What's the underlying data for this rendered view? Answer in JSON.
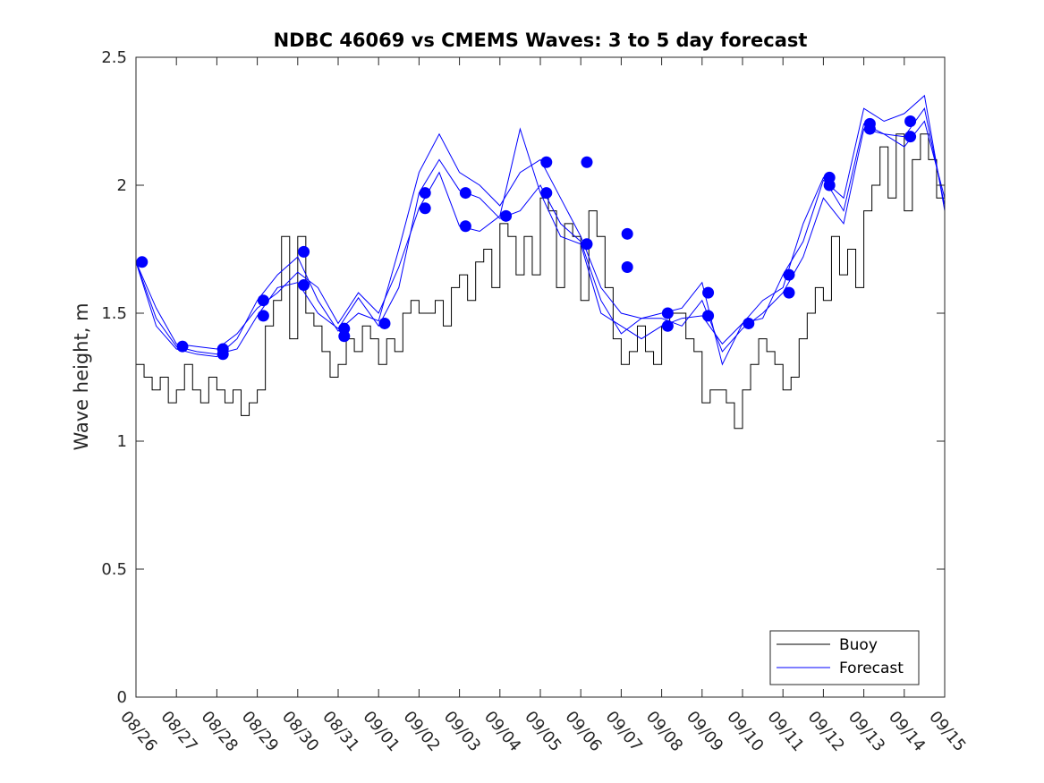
{
  "chart_data": {
    "type": "line",
    "title": "NDBC 46069 vs CMEMS Waves: 3 to 5 day forecast",
    "xlabel": "",
    "ylabel": "Wave height, m",
    "xlim_days": [
      0,
      20
    ],
    "ylim": [
      0,
      2.5
    ],
    "yticks": [
      0,
      0.5,
      1,
      1.5,
      2,
      2.5
    ],
    "ytick_labels": [
      "0",
      "0.5",
      "1",
      "1.5",
      "2",
      "2.5"
    ],
    "xtick_labels": [
      "08/26",
      "08/27",
      "08/28",
      "08/29",
      "08/30",
      "08/31",
      "09/01",
      "09/02",
      "09/03",
      "09/04",
      "09/05",
      "09/06",
      "09/07",
      "09/08",
      "09/09",
      "09/10",
      "09/11",
      "09/12",
      "09/13",
      "09/14",
      "09/15"
    ],
    "legend": {
      "placement": "bottom-right",
      "entries": [
        "Buoy",
        "Forecast"
      ]
    },
    "colors": {
      "buoy": "#000000",
      "forecast": "#0000ff",
      "axis": "#262626"
    },
    "series": [
      {
        "name": "Buoy",
        "x_days": [
          0,
          0.2,
          0.4,
          0.6,
          0.8,
          1.0,
          1.2,
          1.4,
          1.6,
          1.8,
          2.0,
          2.2,
          2.4,
          2.6,
          2.8,
          3.0,
          3.2,
          3.4,
          3.6,
          3.8,
          4.0,
          4.2,
          4.4,
          4.6,
          4.8,
          5.0,
          5.2,
          5.4,
          5.6,
          5.8,
          6.0,
          6.2,
          6.4,
          6.6,
          6.8,
          7.0,
          7.2,
          7.4,
          7.6,
          7.8,
          8.0,
          8.2,
          8.4,
          8.6,
          8.8,
          9.0,
          9.2,
          9.4,
          9.6,
          9.8,
          10.0,
          10.2,
          10.4,
          10.6,
          10.8,
          11.0,
          11.2,
          11.4,
          11.6,
          11.8,
          12.0,
          12.2,
          12.4,
          12.6,
          12.8,
          13.0,
          13.2,
          13.4,
          13.6,
          13.8,
          14.0,
          14.2,
          14.4,
          14.6,
          14.8,
          15.0,
          15.2,
          15.4,
          15.6,
          15.8,
          16.0,
          16.2,
          16.4,
          16.6,
          16.8,
          17.0,
          17.2,
          17.4,
          17.6,
          17.8,
          18.0,
          18.2,
          18.4,
          18.6,
          18.8,
          19.0,
          19.2,
          19.4,
          19.6,
          19.8,
          20.0
        ],
        "values": [
          1.3,
          1.25,
          1.2,
          1.25,
          1.15,
          1.2,
          1.3,
          1.2,
          1.15,
          1.25,
          1.2,
          1.15,
          1.2,
          1.1,
          1.15,
          1.2,
          1.45,
          1.55,
          1.8,
          1.4,
          1.8,
          1.5,
          1.45,
          1.35,
          1.25,
          1.3,
          1.4,
          1.35,
          1.45,
          1.4,
          1.3,
          1.4,
          1.35,
          1.5,
          1.55,
          1.5,
          1.5,
          1.55,
          1.45,
          1.6,
          1.65,
          1.55,
          1.7,
          1.75,
          1.6,
          1.85,
          1.8,
          1.65,
          1.8,
          1.65,
          1.95,
          1.9,
          1.6,
          1.85,
          1.8,
          1.55,
          1.9,
          1.8,
          1.6,
          1.4,
          1.3,
          1.35,
          1.45,
          1.35,
          1.3,
          1.45,
          1.5,
          1.5,
          1.4,
          1.35,
          1.15,
          1.2,
          1.2,
          1.15,
          1.05,
          1.2,
          1.3,
          1.4,
          1.35,
          1.3,
          1.2,
          1.25,
          1.4,
          1.5,
          1.6,
          1.55,
          1.8,
          1.65,
          1.75,
          1.6,
          1.9,
          2.0,
          2.15,
          1.95,
          2.2,
          1.9,
          2.1,
          2.2,
          2.1,
          1.95,
          2.0
        ]
      },
      {
        "name": "Forecast",
        "tracks": [
          {
            "x_days": [
              0,
              0.5,
              1,
              1.5,
              2,
              2.5,
              3,
              3.5,
              4,
              4.5,
              5,
              5.5,
              6,
              6.5,
              7,
              7.5,
              8,
              8.5,
              9,
              9.5,
              10,
              10.5,
              11,
              11.5,
              12,
              12.5,
              13,
              13.5,
              14,
              14.5,
              15,
              15.5,
              16,
              16.5,
              17,
              17.5,
              18,
              18.5,
              19,
              19.5,
              20
            ],
            "values": [
              1.7,
              1.48,
              1.37,
              1.35,
              1.34,
              1.36,
              1.49,
              1.6,
              1.62,
              1.5,
              1.44,
              1.56,
              1.45,
              1.6,
              1.97,
              2.1,
              1.98,
              1.95,
              1.87,
              1.9,
              2.0,
              1.85,
              1.78,
              1.55,
              1.42,
              1.48,
              1.48,
              1.45,
              1.55,
              1.35,
              1.44,
              1.5,
              1.58,
              1.72,
              1.95,
              1.85,
              2.22,
              2.2,
              2.15,
              2.25,
              1.95
            ]
          },
          {
            "x_days": [
              0,
              0.5,
              1,
              1.5,
              2,
              2.5,
              3,
              3.5,
              4,
              4.5,
              5,
              5.5,
              6,
              6.5,
              7,
              7.5,
              8,
              8.5,
              9,
              9.5,
              10,
              10.5,
              11,
              11.5,
              12,
              12.5,
              13,
              13.5,
              14,
              14.5,
              15,
              15.5,
              16,
              16.5,
              17,
              17.5,
              18,
              18.5,
              19,
              19.5,
              20
            ],
            "values": [
              1.7,
              1.45,
              1.36,
              1.34,
              1.33,
              1.4,
              1.55,
              1.65,
              1.72,
              1.55,
              1.43,
              1.5,
              1.47,
              1.75,
              2.05,
              2.2,
              2.05,
              2.0,
              1.92,
              2.05,
              2.1,
              1.95,
              1.8,
              1.6,
              1.5,
              1.48,
              1.5,
              1.52,
              1.62,
              1.3,
              1.46,
              1.48,
              1.65,
              1.78,
              2.02,
              1.95,
              2.3,
              2.25,
              2.28,
              2.35,
              1.9
            ]
          },
          {
            "x_days": [
              0,
              0.5,
              1,
              1.5,
              2,
              2.5,
              3,
              3.5,
              4,
              4.5,
              5,
              5.5,
              6,
              6.5,
              7,
              7.5,
              8,
              8.5,
              9,
              9.5,
              10,
              10.5,
              11,
              11.5,
              12,
              12.5,
              13,
              13.5,
              14,
              14.5,
              15,
              15.5,
              16,
              16.5,
              17,
              17.5,
              18,
              18.5,
              19,
              19.5,
              20
            ],
            "values": [
              1.7,
              1.52,
              1.38,
              1.37,
              1.36,
              1.42,
              1.52,
              1.58,
              1.66,
              1.6,
              1.46,
              1.58,
              1.5,
              1.68,
              1.91,
              2.05,
              1.84,
              1.82,
              1.88,
              2.22,
              1.97,
              1.8,
              1.77,
              1.5,
              1.45,
              1.4,
              1.45,
              1.48,
              1.49,
              1.38,
              1.46,
              1.55,
              1.6,
              1.85,
              2.03,
              1.9,
              2.24,
              2.2,
              2.19,
              2.3,
              1.92
            ]
          }
        ],
        "markers": [
          {
            "x": 0.15,
            "y": 1.7
          },
          {
            "x": 1.15,
            "y": 1.37
          },
          {
            "x": 2.15,
            "y": 1.34
          },
          {
            "x": 2.15,
            "y": 1.36
          },
          {
            "x": 3.15,
            "y": 1.55
          },
          {
            "x": 3.15,
            "y": 1.49
          },
          {
            "x": 4.15,
            "y": 1.74
          },
          {
            "x": 4.15,
            "y": 1.61
          },
          {
            "x": 5.15,
            "y": 1.44
          },
          {
            "x": 5.15,
            "y": 1.41
          },
          {
            "x": 6.15,
            "y": 1.46
          },
          {
            "x": 7.15,
            "y": 1.97
          },
          {
            "x": 7.15,
            "y": 1.91
          },
          {
            "x": 8.15,
            "y": 1.97
          },
          {
            "x": 8.15,
            "y": 1.84
          },
          {
            "x": 9.15,
            "y": 1.88
          },
          {
            "x": 10.15,
            "y": 2.09
          },
          {
            "x": 10.15,
            "y": 1.97
          },
          {
            "x": 11.15,
            "y": 2.09
          },
          {
            "x": 11.15,
            "y": 1.77
          },
          {
            "x": 12.15,
            "y": 1.81
          },
          {
            "x": 12.15,
            "y": 1.68
          },
          {
            "x": 13.15,
            "y": 1.5
          },
          {
            "x": 13.15,
            "y": 1.45
          },
          {
            "x": 14.15,
            "y": 1.58
          },
          {
            "x": 14.15,
            "y": 1.49
          },
          {
            "x": 15.15,
            "y": 1.46
          },
          {
            "x": 16.15,
            "y": 1.65
          },
          {
            "x": 16.15,
            "y": 1.58
          },
          {
            "x": 17.15,
            "y": 2.03
          },
          {
            "x": 17.15,
            "y": 2.0
          },
          {
            "x": 18.15,
            "y": 2.24
          },
          {
            "x": 18.15,
            "y": 2.22
          },
          {
            "x": 19.15,
            "y": 2.25
          },
          {
            "x": 19.15,
            "y": 2.19
          }
        ]
      }
    ]
  }
}
